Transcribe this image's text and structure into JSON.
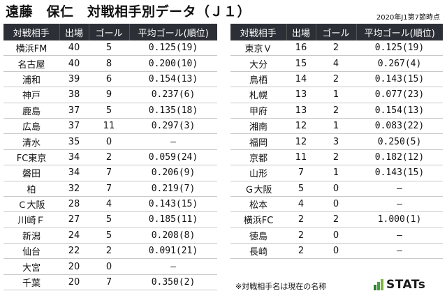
{
  "title": "遠藤　保仁　対戦相手別データ（Ｊ１）",
  "as_of": "2020年J1第7節時点",
  "headers": [
    "対戦相手",
    "出場",
    "ゴール",
    "平均ゴール(順位)"
  ],
  "left_rows": [
    [
      "横浜FM",
      "40",
      "5",
      "0.125(19)"
    ],
    [
      "名古屋",
      "40",
      "8",
      "0.200(10)"
    ],
    [
      "浦和",
      "39",
      "6",
      "0.154(13)"
    ],
    [
      "神戸",
      "38",
      "9",
      "0.237(6)"
    ],
    [
      "鹿島",
      "37",
      "5",
      "0.135(18)"
    ],
    [
      "広島",
      "37",
      "11",
      "0.297(3)"
    ],
    [
      "清水",
      "35",
      "0",
      "–"
    ],
    [
      "FC東京",
      "34",
      "2",
      "0.059(24)"
    ],
    [
      "磐田",
      "34",
      "7",
      "0.206(9)"
    ],
    [
      "柏",
      "32",
      "7",
      "0.219(7)"
    ],
    [
      "Ｃ大阪",
      "28",
      "4",
      "0.143(15)"
    ],
    [
      "川崎Ｆ",
      "27",
      "5",
      "0.185(11)"
    ],
    [
      "新潟",
      "24",
      "5",
      "0.208(8)"
    ],
    [
      "仙台",
      "22",
      "2",
      "0.091(21)"
    ],
    [
      "大宮",
      "20",
      "0",
      "–"
    ],
    [
      "千葉",
      "20",
      "7",
      "0.350(2)"
    ]
  ],
  "right_rows": [
    [
      "東京Ｖ",
      "16",
      "2",
      "0.125(19)"
    ],
    [
      "大分",
      "15",
      "4",
      "0.267(4)"
    ],
    [
      "鳥栖",
      "14",
      "2",
      "0.143(15)"
    ],
    [
      "札幌",
      "13",
      "1",
      "0.077(23)"
    ],
    [
      "甲府",
      "13",
      "2",
      "0.154(13)"
    ],
    [
      "湘南",
      "12",
      "1",
      "0.083(22)"
    ],
    [
      "福岡",
      "12",
      "3",
      "0.250(5)"
    ],
    [
      "京都",
      "11",
      "2",
      "0.182(12)"
    ],
    [
      "山形",
      "7",
      "1",
      "0.143(15)"
    ],
    [
      "Ｇ大阪",
      "5",
      "0",
      "–"
    ],
    [
      "松本",
      "4",
      "0",
      "–"
    ],
    [
      "横浜FC",
      "2",
      "2",
      "1.000(1)"
    ],
    [
      "徳島",
      "2",
      "0",
      "–"
    ],
    [
      "長崎",
      "2",
      "0",
      "–"
    ]
  ],
  "note": "※対戦相手名は現在の名称",
  "logo": {
    "text": "STATs",
    "bar_colors": [
      "#2e7d32",
      "#43a047",
      "#7cb342"
    ]
  }
}
